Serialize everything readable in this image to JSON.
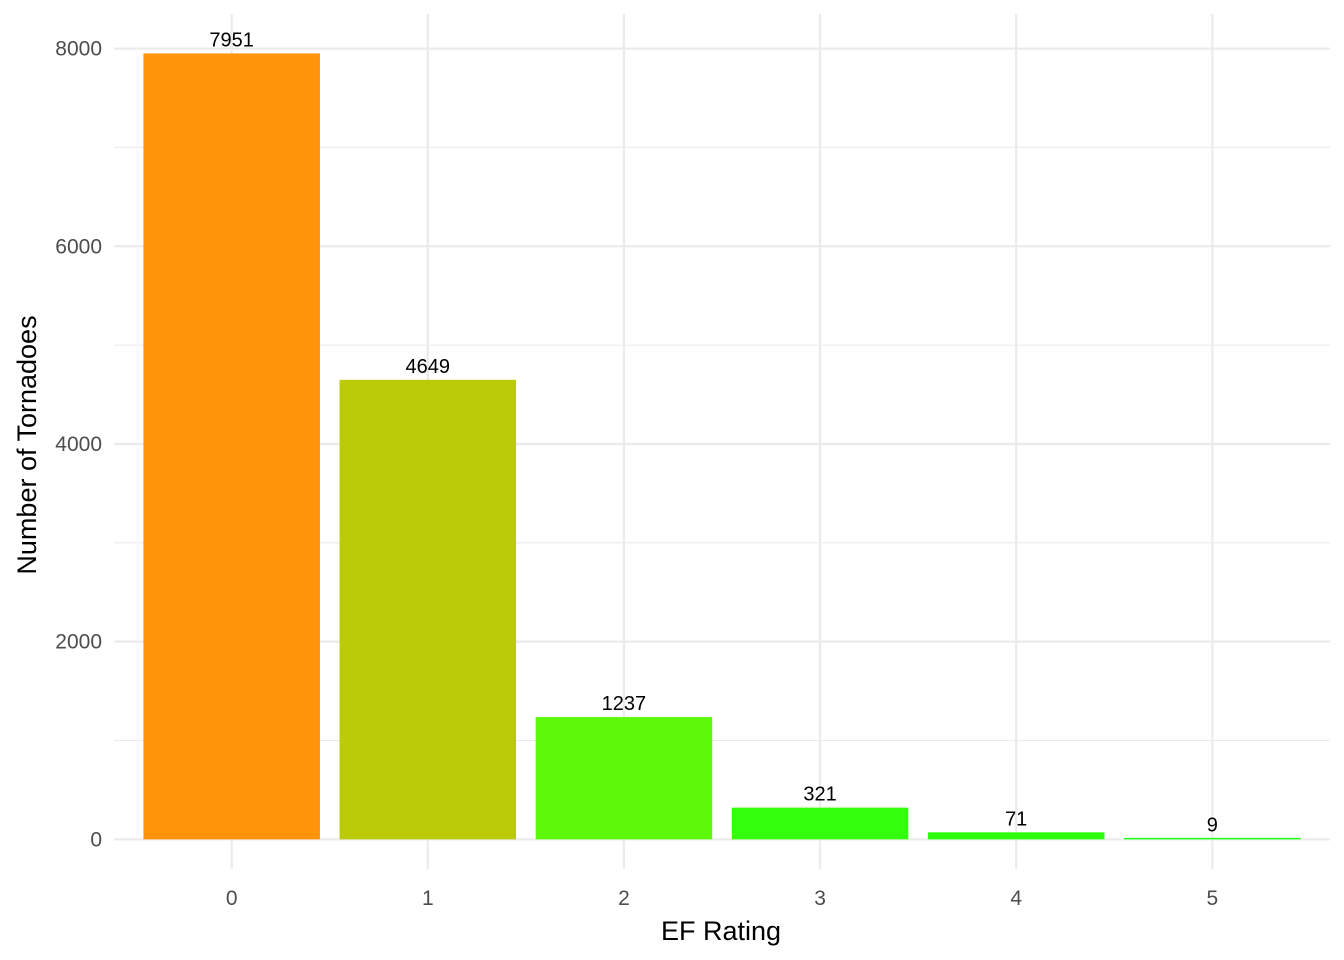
{
  "chart_data": {
    "type": "bar",
    "categories": [
      "0",
      "1",
      "2",
      "3",
      "4",
      "5"
    ],
    "values": [
      7951,
      4649,
      1237,
      321,
      71,
      9
    ],
    "colors": [
      "#FF940B",
      "#BCCB07",
      "#5DF90A",
      "#33FF0C",
      "#2BFF0E",
      "#19FF10"
    ],
    "data_labels": [
      "7951",
      "4649",
      "1237",
      "321",
      "71",
      "9"
    ],
    "title": "",
    "xlabel": "EF Rating",
    "ylabel": "Number of Tornadoes",
    "ylim": [
      -300,
      8350
    ],
    "y_ticks": [
      0,
      2000,
      4000,
      6000,
      8000
    ],
    "y_tick_labels": [
      "0",
      "2000",
      "4000",
      "6000",
      "8000"
    ],
    "y_minor_ticks": [
      1000,
      3000,
      5000,
      7000
    ],
    "grid": true,
    "legend": "none",
    "theme": "minimal"
  }
}
